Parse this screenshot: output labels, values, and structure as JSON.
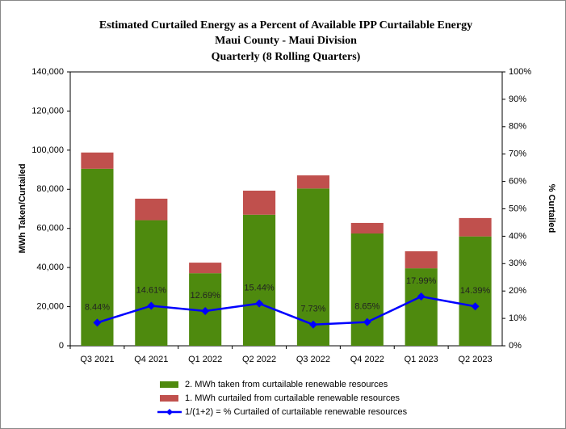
{
  "chart_data": {
    "type": "bar",
    "stacked": true,
    "title": [
      "Estimated Curtailed  Energy  as a Percent of Available IPP Curtailable  Energy",
      "Maui County  - Maui Division",
      "Quarterly  (8 Rolling Quarters)"
    ],
    "y_label": "MWh Taken/Curtailed",
    "y2_label": "% Curtailed",
    "categories": [
      "Q3 2021",
      "Q4 2021",
      "Q1 2022",
      "Q2 2022",
      "Q3 2022",
      "Q4 2022",
      "Q1 2023",
      "Q2 2023"
    ],
    "series": [
      {
        "name": "2. MWh taken from curtailable renewable resources",
        "type": "bar",
        "color": "#4e8a0e",
        "values": [
          90500,
          64200,
          37100,
          67000,
          80400,
          57400,
          39600,
          55900
        ]
      },
      {
        "name": "1. MWh curtailed from curtailable renewable resources",
        "type": "bar",
        "color": "#c0504d",
        "values": [
          8300,
          11000,
          5400,
          12300,
          6700,
          5400,
          8700,
          9400
        ]
      },
      {
        "name": "1/(1+2) = % Curtailed of curtailable renewable resources",
        "type": "line",
        "axis": "y2",
        "color": "#0000ff",
        "values": [
          8.44,
          14.61,
          12.69,
          15.44,
          7.73,
          8.65,
          17.99,
          14.39
        ],
        "value_labels": [
          "8.44%",
          "14.61%",
          "12.69%",
          "15.44%",
          "7.73%",
          "8.65%",
          "17.99%",
          "14.39%"
        ]
      }
    ],
    "ylim": [
      0,
      140000
    ],
    "yticks": [
      0,
      {
        "value": 20000,
        "label": "20,000"
      },
      {
        "value": 40000,
        "label": "40,000"
      },
      {
        "value": 60000,
        "label": "60,000"
      },
      {
        "value": 80000,
        "label": "80,000"
      },
      {
        "value": 100000,
        "label": "100,000"
      },
      {
        "value": 120000,
        "label": "120,000"
      },
      {
        "value": 140000,
        "label": "140,000"
      }
    ],
    "y2lim": [
      0,
      100
    ],
    "y2ticks": [
      {
        "value": 0,
        "label": "0%"
      },
      {
        "value": 10,
        "label": "10%"
      },
      {
        "value": 20,
        "label": "20%"
      },
      {
        "value": 30,
        "label": "30%"
      },
      {
        "value": 40,
        "label": "40%"
      },
      {
        "value": 50,
        "label": "50%"
      },
      {
        "value": 60,
        "label": "60%"
      },
      {
        "value": 70,
        "label": "70%"
      },
      {
        "value": 80,
        "label": "80%"
      },
      {
        "value": 90,
        "label": "90%"
      },
      {
        "value": 100,
        "label": "100%"
      }
    ],
    "grid": false
  }
}
